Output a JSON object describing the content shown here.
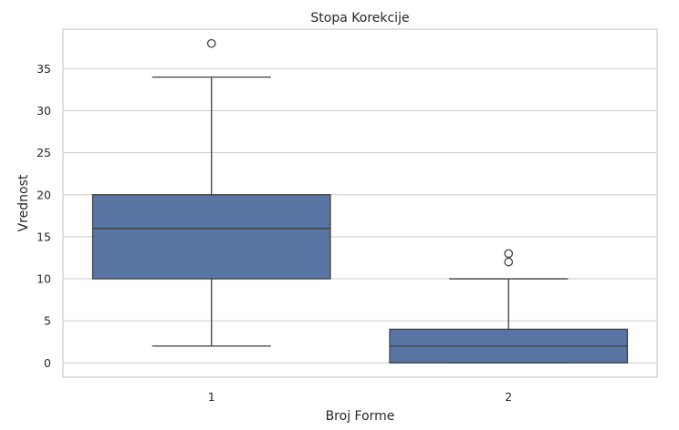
{
  "chart_data": {
    "type": "box",
    "title": "Stopa Korekcije",
    "xlabel": "Broj Forme",
    "ylabel": "Vrednost",
    "ylim": [
      -1.7,
      39.7
    ],
    "yticks": [
      0,
      5,
      10,
      15,
      20,
      25,
      30,
      35
    ],
    "grid": true,
    "categories": [
      "1",
      "2"
    ],
    "boxes": [
      {
        "category": "1",
        "whisker_low": 2,
        "q1": 10,
        "median": 16,
        "q3": 20,
        "whisker_high": 34,
        "outliers": [
          38
        ]
      },
      {
        "category": "2",
        "whisker_low": 0,
        "q1": 0,
        "median": 2,
        "q3": 4,
        "whisker_high": 10,
        "outliers": [
          12,
          13
        ]
      }
    ],
    "colors": {
      "box_fill": "#5875a4",
      "line": "#3f3f3f",
      "grid": "#cccccc"
    }
  }
}
